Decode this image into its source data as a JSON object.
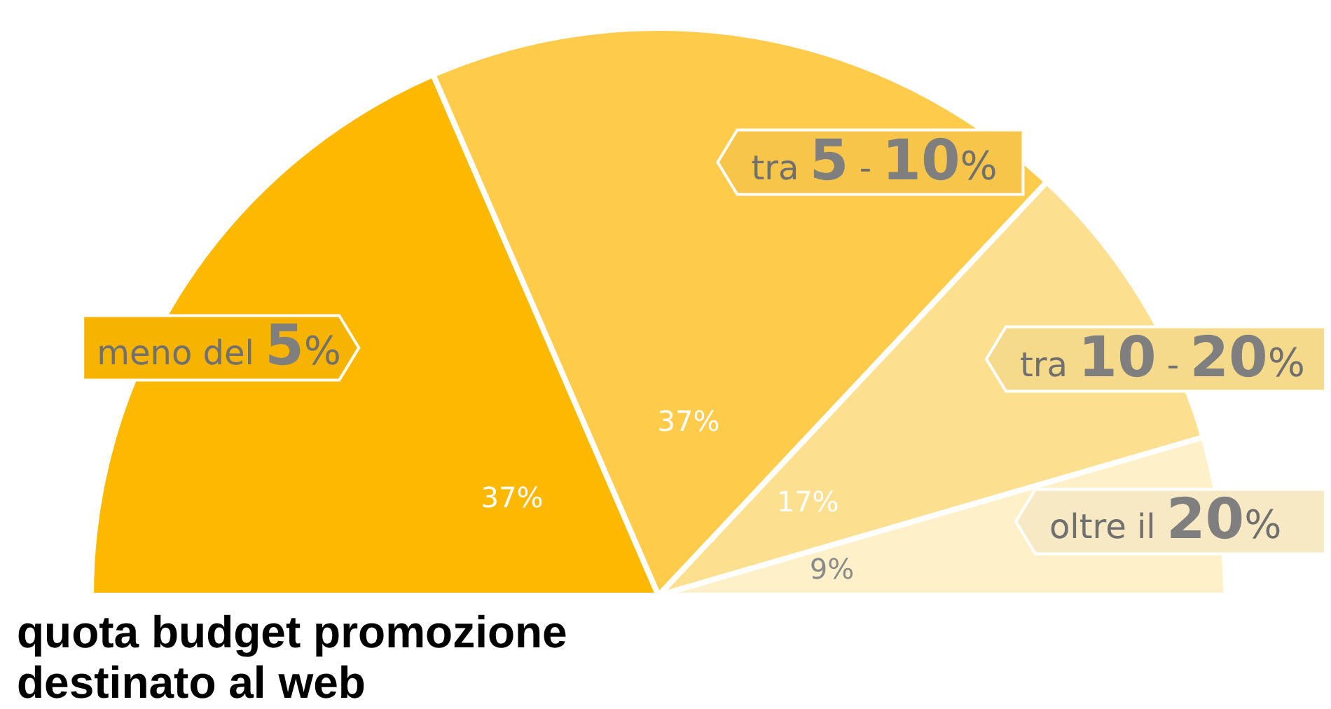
{
  "chart_data": {
    "type": "pie",
    "title": "quota budget promozione destinato al web",
    "categories": [
      "meno del 5%",
      "tra 5 - 10%",
      "tra 10 - 20%",
      "oltre il 20%"
    ],
    "values": [
      37,
      37,
      17,
      9
    ],
    "value_labels": [
      "37%",
      "37%",
      "17%",
      "9%"
    ],
    "colors": [
      "#fdb900",
      "#fecb4b",
      "#fde08f",
      "#fef0c9"
    ]
  }
}
